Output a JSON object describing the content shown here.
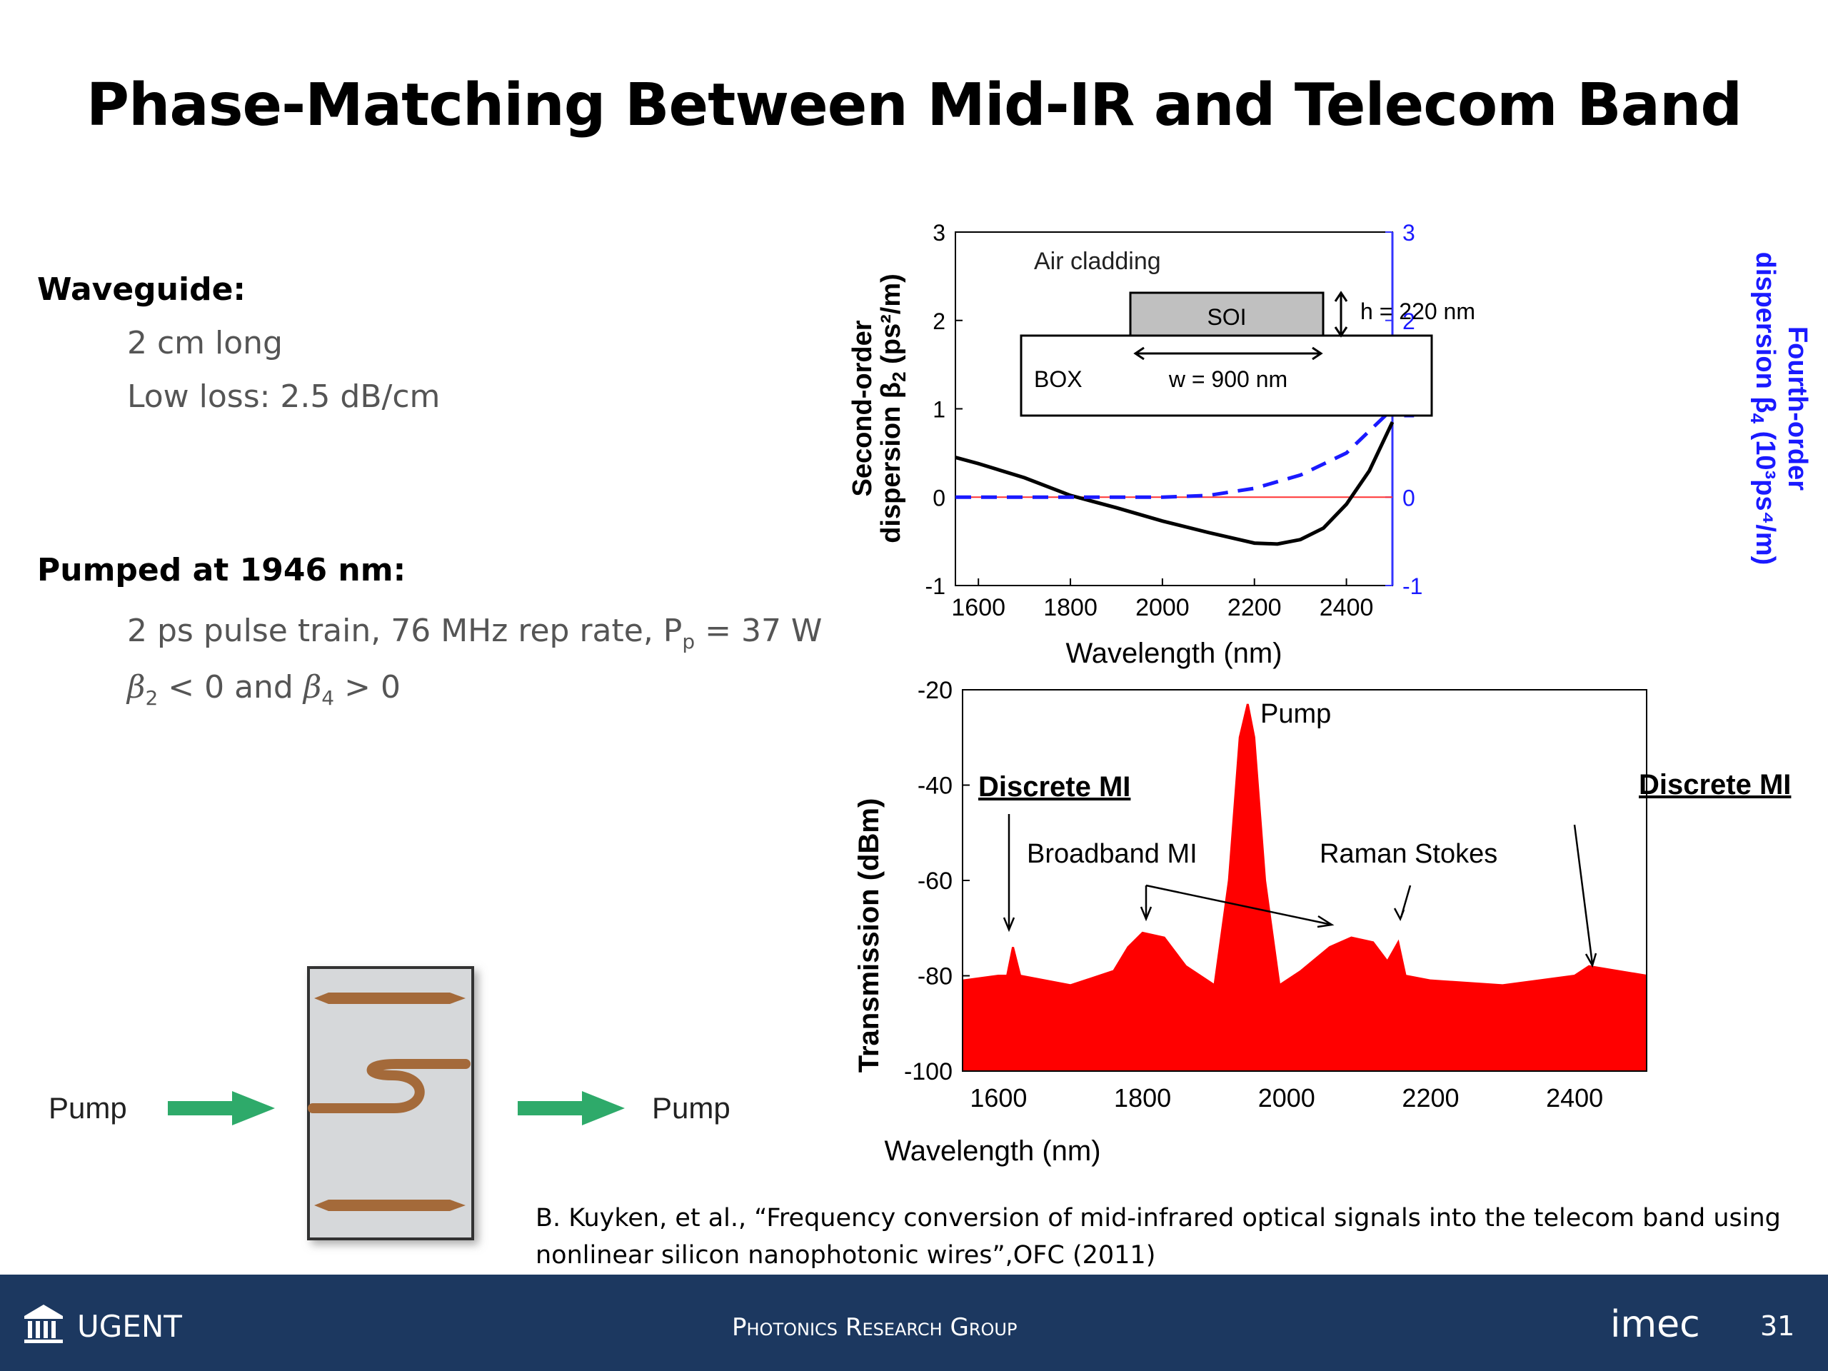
{
  "title": "Phase-Matching Between Mid-IR and Telecom Band",
  "waveguide": {
    "heading": "Waveguide:",
    "lines": [
      "2 cm long",
      "Low loss: 2.5 dB/cm"
    ]
  },
  "pumped": {
    "heading": "Pumped at 1946 nm:",
    "line1_main": "2 ps pulse train, 76 MHz rep rate, P",
    "line1_sub": "p",
    "line1_end": " = 37 W",
    "beta": "β",
    "beta2_sub": "2",
    "lt": " < 0 and ",
    "beta4_sub": "4",
    "gt": " > 0"
  },
  "diagram": {
    "pump_in": "Pump",
    "pump_out": "Pump"
  },
  "chart_data": [
    {
      "type": "line",
      "xlabel": "Wavelength (nm)",
      "ylabel_line1": "Second-order",
      "ylabel_line2": "dispersion β",
      "ylabel_sub": "2",
      "ylabel_unit": " (ps²/m)",
      "y2label_line1": "Fourth-order",
      "y2label_line2": "dispersion β",
      "y2label_sub": "4",
      "y2label_unit": " (10³ps⁴/m)",
      "xlim": [
        1550,
        2500
      ],
      "ylim": [
        -1,
        3
      ],
      "y2lim": [
        -1,
        3
      ],
      "xticks": [
        "1600",
        "1800",
        "2000",
        "2200",
        "2400"
      ],
      "yticks": [
        "-1",
        "0",
        "1",
        "2",
        "3"
      ],
      "y2ticks": [
        "-1",
        "0",
        "1",
        "2",
        "3"
      ],
      "series": [
        {
          "name": "beta2",
          "color": "#000000",
          "x": [
            1550,
            1600,
            1700,
            1800,
            1900,
            2000,
            2100,
            2200,
            2250,
            2300,
            2350,
            2400,
            2450,
            2500
          ],
          "values": [
            0.45,
            0.38,
            0.22,
            0.02,
            -0.12,
            -0.27,
            -0.4,
            -0.52,
            -0.53,
            -0.48,
            -0.35,
            -0.08,
            0.3,
            0.85
          ]
        },
        {
          "name": "beta4",
          "color": "#0000ff",
          "dashed": true,
          "x": [
            1550,
            1700,
            1800,
            1900,
            2000,
            2100,
            2200,
            2300,
            2400,
            2450,
            2500
          ],
          "values": [
            0,
            0,
            0,
            0,
            0,
            0.02,
            0.1,
            0.25,
            0.5,
            0.75,
            1.0
          ]
        }
      ],
      "inset": {
        "cladding": "Air cladding",
        "soi": "SOI",
        "height": "h = 220 nm",
        "box": "BOX",
        "width": "w = 900 nm"
      }
    },
    {
      "type": "area",
      "xlabel": "Wavelength (nm)",
      "ylabel": "Transmission (dBm)",
      "xlim": [
        1550,
        2500
      ],
      "ylim": [
        -100,
        -20
      ],
      "xticks": [
        "1600",
        "1800",
        "2000",
        "2200",
        "2400"
      ],
      "yticks": [
        "-20",
        "-40",
        "-60",
        "-80",
        "-100"
      ],
      "series": [
        {
          "name": "spectrum",
          "color": "#ff0000",
          "x": [
            1550,
            1600,
            1612,
            1620,
            1630,
            1700,
            1760,
            1780,
            1800,
            1830,
            1860,
            1900,
            1920,
            1935,
            1946,
            1955,
            1970,
            1990,
            2020,
            2060,
            2090,
            2120,
            2140,
            2155,
            2165,
            2200,
            2300,
            2400,
            2420,
            2500
          ],
          "values": [
            -81,
            -80,
            -80,
            -74,
            -80,
            -82,
            -79,
            -74,
            -71,
            -72,
            -78,
            -82,
            -60,
            -30,
            -23,
            -30,
            -60,
            -82,
            -79,
            -74,
            -72,
            -73,
            -77,
            -73,
            -80,
            -81,
            -82,
            -80,
            -78,
            -80
          ]
        }
      ],
      "annotations": {
        "pump": "Pump",
        "discrete_left": "Discrete MI",
        "discrete_right": "Discrete MI",
        "broadband": "Broadband MI",
        "raman": "Raman Stokes"
      }
    }
  ],
  "citation": {
    "line1": "B. Kuyken, et al., “Frequency conversion of mid-infrared optical signals into the telecom band using",
    "line2": "nonlinear silicon nanophotonic wires”,OFC (2011)"
  },
  "footer": {
    "university": "UGENT",
    "group": "Photonics Research Group",
    "brand": "imec",
    "page": "31",
    "bg_color": "#1c3860"
  }
}
